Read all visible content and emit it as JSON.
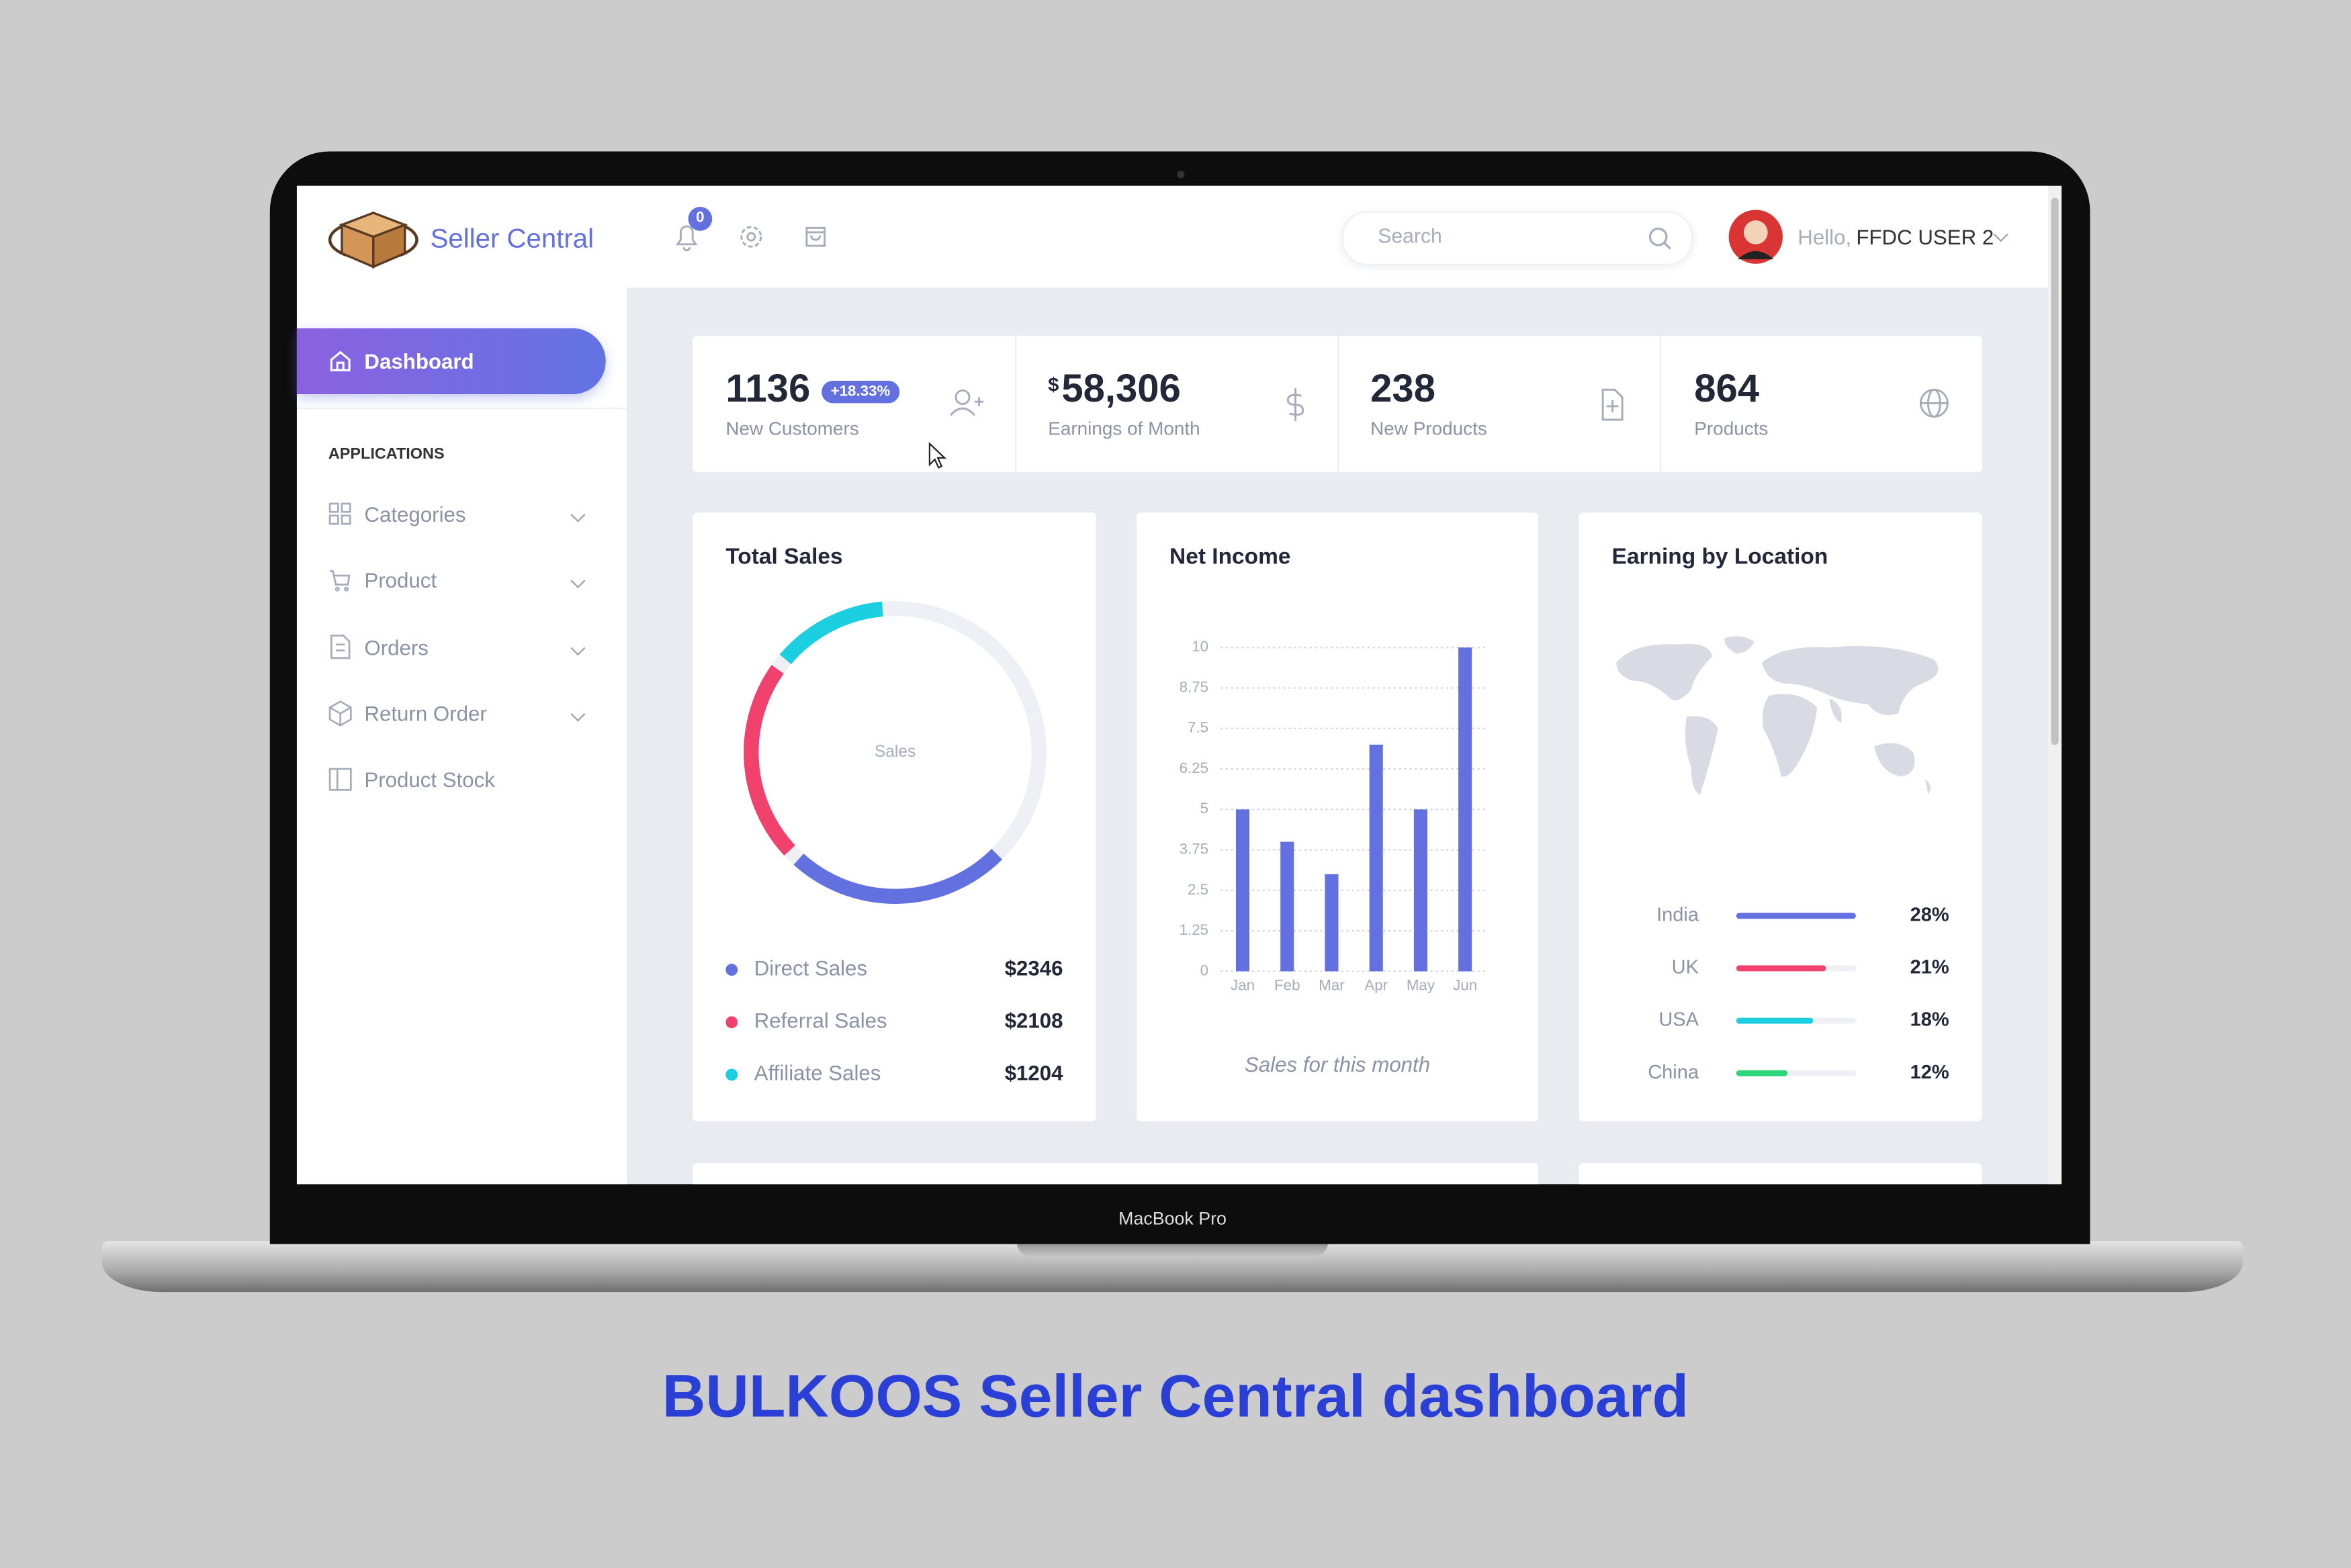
{
  "brand": "Seller Central",
  "sidebar": {
    "active": "Dashboard",
    "section": "APPLICATIONS",
    "items": [
      "Categories",
      "Product",
      "Orders",
      "Return Order",
      "Product Stock"
    ]
  },
  "header": {
    "notifications": "0",
    "search": "Search",
    "greeting": "Hello,",
    "user": "FFDC USER 2"
  },
  "stats": [
    {
      "value": "1136",
      "badge": "+18.33%",
      "label": "New Customers"
    },
    {
      "prefix": "$",
      "value": "58,306",
      "label": "Earnings of Month"
    },
    {
      "value": "238",
      "label": "New Products"
    },
    {
      "value": "864",
      "label": "Products"
    }
  ],
  "chart_data": [
    {
      "type": "donut",
      "title": "Total Sales",
      "center_label": "Sales",
      "categories": [
        "Direct Sales",
        "Referral Sales",
        "Affiliate Sales"
      ],
      "values": [
        2346,
        2108,
        1204
      ],
      "value_labels": [
        "$2346",
        "$2108",
        "$1204"
      ],
      "colors": [
        "#6370e0",
        "#f0426c",
        "#1ccfe0"
      ]
    },
    {
      "type": "bar",
      "title": "Net Income",
      "categories": [
        "Jan",
        "Feb",
        "Mar",
        "Apr",
        "May",
        "Jun"
      ],
      "values": [
        5,
        4,
        3,
        7,
        5,
        10
      ],
      "color": "#6370e0",
      "ylim": [
        0,
        10
      ],
      "yticks": [
        0,
        1.25,
        2.5,
        3.75,
        5,
        6.25,
        7.5,
        8.75,
        10
      ],
      "grid": true,
      "caption": "Sales for this month"
    },
    {
      "type": "progress",
      "title": "Earning by Location",
      "categories": [
        "India",
        "UK",
        "USA",
        "China"
      ],
      "values": [
        28,
        21,
        18,
        12
      ],
      "value_labels": [
        "28%",
        "21%",
        "18%",
        "12%"
      ],
      "colors": [
        "#6370e0",
        "#f0426c",
        "#1ccfe0",
        "#2ed47a"
      ]
    }
  ],
  "device": "MacBook Pro",
  "caption": "BULKOOS Seller Central dashboard"
}
